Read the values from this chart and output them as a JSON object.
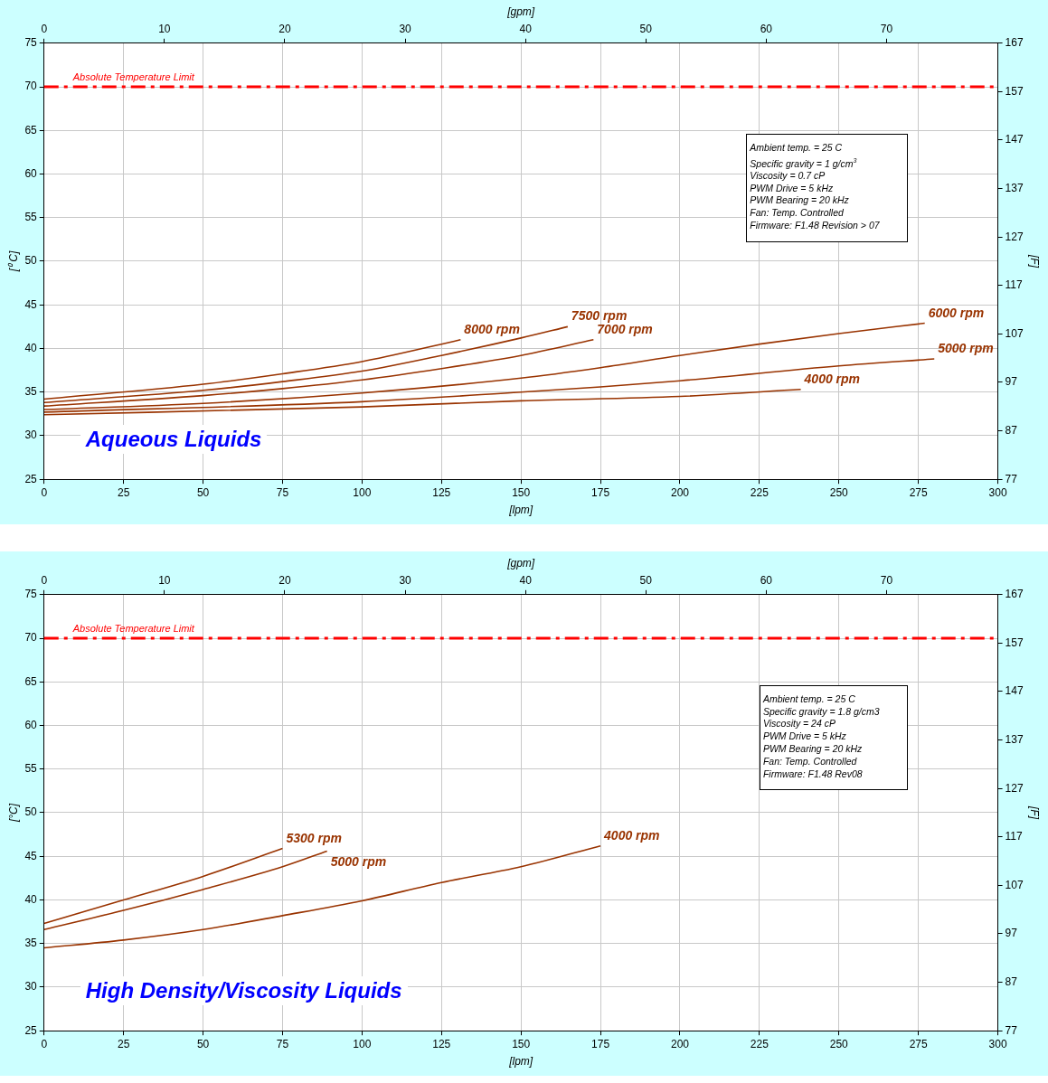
{
  "chart_data": [
    {
      "type": "line",
      "title": "Aqueous Liquids",
      "xlabel": "[lpm]",
      "x2label": "[gpm]",
      "ylabel": "[⁰ C]",
      "y2label": "[F]",
      "xlim": [
        0,
        300
      ],
      "xticks": [
        0,
        25,
        50,
        75,
        100,
        125,
        150,
        175,
        200,
        225,
        250,
        275,
        300
      ],
      "x2lim": [
        0,
        79.25
      ],
      "x2ticks": [
        0,
        10,
        20,
        30,
        40,
        50,
        60,
        70
      ],
      "ylim": [
        25,
        75
      ],
      "yticks": [
        25,
        30,
        35,
        40,
        45,
        50,
        55,
        60,
        65,
        70,
        75
      ],
      "y2lim": [
        77,
        167
      ],
      "y2ticks": [
        77,
        87,
        97,
        107,
        117,
        127,
        137,
        147,
        157,
        167
      ],
      "grid": true,
      "legend": false,
      "marker": "none",
      "ref_lines": [
        {
          "axis": "y",
          "value": 70,
          "label": "Absolute Temperature Limit",
          "color": "#ff0000",
          "line_style": "dashed"
        }
      ],
      "annotations": [
        "Ambient temp. = 25 C",
        "Specific gravity = 1 g/cm$^{3}$",
        "Viscosity = 0.7 cP",
        "PWM Drive = 5 kHz",
        "PWM Bearing = 20 kHz",
        "Fan: Temp. Controlled",
        "Firmware: F1.48 Revision > 07"
      ],
      "series": [
        {
          "name": "8000 rpm",
          "color": "#993300",
          "x": [
            0,
            50,
            75,
            100,
            125,
            131
          ],
          "values": [
            34.2,
            35.9,
            37.1,
            38.5,
            40.5,
            41.0
          ]
        },
        {
          "name": "7500 rpm",
          "color": "#993300",
          "x": [
            0,
            50,
            75,
            100,
            125,
            150,
            164.7
          ],
          "values": [
            33.8,
            35.2,
            36.2,
            37.4,
            39.2,
            41.2,
            42.5
          ]
        },
        {
          "name": "7000 rpm",
          "color": "#993300",
          "x": [
            0,
            50,
            75,
            100,
            125,
            150,
            172.8
          ],
          "values": [
            33.4,
            34.6,
            35.4,
            36.4,
            37.7,
            39.2,
            41.0
          ]
        },
        {
          "name": "6000 rpm",
          "color": "#993300",
          "x": [
            0,
            50,
            100,
            150,
            175,
            200,
            225,
            250,
            277
          ],
          "values": [
            33.0,
            33.7,
            34.9,
            36.6,
            37.8,
            39.2,
            40.5,
            41.7,
            42.9
          ]
        },
        {
          "name": "5000 rpm",
          "color": "#993300",
          "x": [
            0,
            100,
            150,
            175,
            200,
            250,
            280
          ],
          "values": [
            32.7,
            33.9,
            35.0,
            35.6,
            36.3,
            38.0,
            38.8
          ]
        },
        {
          "name": "4000 rpm",
          "color": "#993300",
          "x": [
            0,
            100,
            150,
            200,
            238
          ],
          "values": [
            32.4,
            33.3,
            34.0,
            34.5,
            35.3
          ]
        }
      ]
    },
    {
      "type": "line",
      "title": "High Density/Viscosity Liquids",
      "xlabel": "[lpm]",
      "x2label": "[gpm]",
      "ylabel": "[°C]",
      "y2label": "[F]",
      "xlim": [
        0,
        300
      ],
      "xticks": [
        0,
        25,
        50,
        75,
        100,
        125,
        150,
        175,
        200,
        225,
        250,
        275,
        300
      ],
      "x2lim": [
        0,
        79.25
      ],
      "x2ticks": [
        0,
        10,
        20,
        30,
        40,
        50,
        60,
        70
      ],
      "ylim": [
        25,
        75
      ],
      "yticks": [
        25,
        30,
        35,
        40,
        45,
        50,
        55,
        60,
        65,
        70,
        75
      ],
      "y2lim": [
        77,
        167
      ],
      "y2ticks": [
        77,
        87,
        97,
        107,
        117,
        127,
        137,
        147,
        157,
        167
      ],
      "grid": true,
      "legend": false,
      "marker": "none",
      "ref_lines": [
        {
          "axis": "y",
          "value": 70,
          "label": "Absolute Temperature Limit",
          "color": "#ff0000",
          "line_style": "dashed"
        }
      ],
      "annotations": [
        "Ambient temp. = 25 C",
        "Specific gravity = 1.8 g/cm3",
        "Viscosity = 24 cP",
        "PWM Drive = 5 kHz",
        "PWM Bearing = 20 kHz",
        "Fan: Temp. Controlled",
        "Firmware: F1.48 Rev08"
      ],
      "series": [
        {
          "name": "5300 rpm",
          "color": "#993300",
          "x": [
            0,
            25,
            50,
            75
          ],
          "values": [
            37.3,
            40.0,
            42.7,
            45.9
          ]
        },
        {
          "name": "5000 rpm",
          "color": "#993300",
          "x": [
            0,
            25,
            50,
            75,
            89
          ],
          "values": [
            36.6,
            38.8,
            41.2,
            43.8,
            45.6
          ]
        },
        {
          "name": "4000 rpm",
          "color": "#993300",
          "x": [
            0,
            25,
            50,
            75,
            100,
            125,
            150,
            175
          ],
          "values": [
            34.5,
            35.4,
            36.6,
            38.2,
            39.9,
            42.0,
            43.8,
            46.2
          ]
        }
      ]
    }
  ]
}
